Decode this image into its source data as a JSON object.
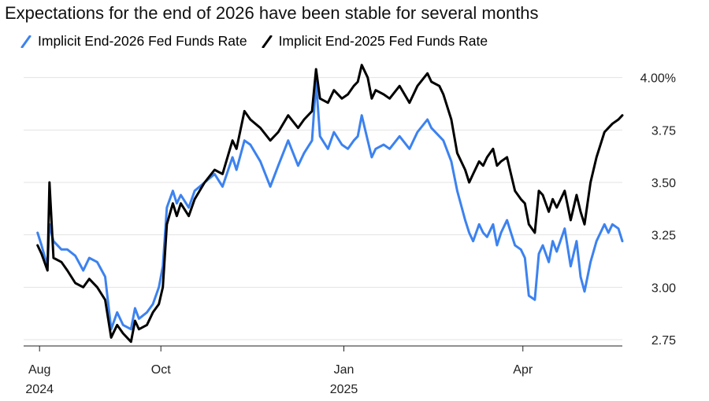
{
  "title": "Expectations for the end of 2026 have been stable for several months",
  "legend": {
    "items": [
      {
        "label": "Implicit End-2026 Fed Funds Rate",
        "color": "#3c82f0"
      },
      {
        "label": "Implicit End-2025 Fed Funds Rate",
        "color": "#000000"
      }
    ]
  },
  "chart_data": {
    "type": "line",
    "title": "Expectations for the end of 2026 have been stable for several months",
    "xlabel": "",
    "ylabel": "",
    "y_unit": "%",
    "ylim": [
      2.72,
      4.04
    ],
    "y_ticks": [
      {
        "value": 4.0,
        "label": "4.00%"
      },
      {
        "value": 3.75,
        "label": "3.75"
      },
      {
        "value": 3.5,
        "label": "3.50"
      },
      {
        "value": 3.25,
        "label": "3.25"
      },
      {
        "value": 3.0,
        "label": "3.00"
      },
      {
        "value": 2.75,
        "label": "2.75"
      }
    ],
    "x_range": [
      "2024-07-24",
      "2025-05-21"
    ],
    "x_ticks": [
      {
        "date": "2024-08-01",
        "label": "Aug",
        "sublabel": "2024"
      },
      {
        "date": "2024-10-01",
        "label": "Oct",
        "sublabel": ""
      },
      {
        "date": "2025-01-01",
        "label": "Jan",
        "sublabel": "2025"
      },
      {
        "date": "2025-04-01",
        "label": "Apr",
        "sublabel": ""
      }
    ],
    "grid": "horizontal",
    "legend_position": "top-left",
    "series": [
      {
        "name": "Implicit End-2026 Fed Funds Rate",
        "color": "#3c82f0",
        "points": [
          [
            "2024-07-31",
            3.26
          ],
          [
            "2024-08-02",
            3.2
          ],
          [
            "2024-08-05",
            3.1
          ],
          [
            "2024-08-06",
            3.3
          ],
          [
            "2024-08-08",
            3.22
          ],
          [
            "2024-08-12",
            3.18
          ],
          [
            "2024-08-15",
            3.18
          ],
          [
            "2024-08-19",
            3.15
          ],
          [
            "2024-08-23",
            3.08
          ],
          [
            "2024-08-26",
            3.14
          ],
          [
            "2024-08-30",
            3.12
          ],
          [
            "2024-09-03",
            3.05
          ],
          [
            "2024-09-06",
            2.8
          ],
          [
            "2024-09-09",
            2.88
          ],
          [
            "2024-09-12",
            2.82
          ],
          [
            "2024-09-16",
            2.8
          ],
          [
            "2024-09-18",
            2.9
          ],
          [
            "2024-09-20",
            2.85
          ],
          [
            "2024-09-24",
            2.88
          ],
          [
            "2024-09-27",
            2.92
          ],
          [
            "2024-09-30",
            3.0
          ],
          [
            "2024-10-02",
            3.1
          ],
          [
            "2024-10-04",
            3.38
          ],
          [
            "2024-10-07",
            3.46
          ],
          [
            "2024-10-09",
            3.4
          ],
          [
            "2024-10-11",
            3.44
          ],
          [
            "2024-10-15",
            3.38
          ],
          [
            "2024-10-18",
            3.46
          ],
          [
            "2024-10-23",
            3.5
          ],
          [
            "2024-10-28",
            3.54
          ],
          [
            "2024-11-01",
            3.48
          ],
          [
            "2024-11-06",
            3.62
          ],
          [
            "2024-11-08",
            3.56
          ],
          [
            "2024-11-12",
            3.7
          ],
          [
            "2024-11-15",
            3.68
          ],
          [
            "2024-11-20",
            3.6
          ],
          [
            "2024-11-25",
            3.48
          ],
          [
            "2024-11-29",
            3.58
          ],
          [
            "2024-12-04",
            3.7
          ],
          [
            "2024-12-09",
            3.58
          ],
          [
            "2024-12-12",
            3.64
          ],
          [
            "2024-12-16",
            3.7
          ],
          [
            "2024-12-18",
            3.98
          ],
          [
            "2024-12-20",
            3.72
          ],
          [
            "2024-12-24",
            3.66
          ],
          [
            "2024-12-27",
            3.74
          ],
          [
            "2024-12-31",
            3.68
          ],
          [
            "2025-01-03",
            3.66
          ],
          [
            "2025-01-06",
            3.7
          ],
          [
            "2025-01-08",
            3.72
          ],
          [
            "2025-01-10",
            3.82
          ],
          [
            "2025-01-13",
            3.7
          ],
          [
            "2025-01-15",
            3.62
          ],
          [
            "2025-01-17",
            3.66
          ],
          [
            "2025-01-21",
            3.68
          ],
          [
            "2025-01-24",
            3.66
          ],
          [
            "2025-01-29",
            3.72
          ],
          [
            "2025-02-03",
            3.66
          ],
          [
            "2025-02-07",
            3.74
          ],
          [
            "2025-02-12",
            3.8
          ],
          [
            "2025-02-14",
            3.76
          ],
          [
            "2025-02-18",
            3.72
          ],
          [
            "2025-02-20",
            3.7
          ],
          [
            "2025-02-24",
            3.6
          ],
          [
            "2025-02-27",
            3.46
          ],
          [
            "2025-03-03",
            3.32
          ],
          [
            "2025-03-05",
            3.26
          ],
          [
            "2025-03-07",
            3.22
          ],
          [
            "2025-03-10",
            3.3
          ],
          [
            "2025-03-12",
            3.26
          ],
          [
            "2025-03-14",
            3.24
          ],
          [
            "2025-03-17",
            3.3
          ],
          [
            "2025-03-19",
            3.2
          ],
          [
            "2025-03-21",
            3.26
          ],
          [
            "2025-03-24",
            3.32
          ],
          [
            "2025-03-26",
            3.26
          ],
          [
            "2025-03-28",
            3.2
          ],
          [
            "2025-03-31",
            3.18
          ],
          [
            "2025-04-02",
            3.14
          ],
          [
            "2025-04-04",
            2.96
          ],
          [
            "2025-04-07",
            2.94
          ],
          [
            "2025-04-09",
            3.16
          ],
          [
            "2025-04-11",
            3.2
          ],
          [
            "2025-04-14",
            3.12
          ],
          [
            "2025-04-16",
            3.22
          ],
          [
            "2025-04-18",
            3.17
          ],
          [
            "2025-04-22",
            3.28
          ],
          [
            "2025-04-25",
            3.1
          ],
          [
            "2025-04-28",
            3.22
          ],
          [
            "2025-04-30",
            3.05
          ],
          [
            "2025-05-02",
            2.98
          ],
          [
            "2025-05-05",
            3.12
          ],
          [
            "2025-05-08",
            3.22
          ],
          [
            "2025-05-12",
            3.3
          ],
          [
            "2025-05-14",
            3.26
          ],
          [
            "2025-05-16",
            3.3
          ],
          [
            "2025-05-19",
            3.28
          ],
          [
            "2025-05-21",
            3.22
          ]
        ]
      },
      {
        "name": "Implicit End-2025 Fed Funds Rate",
        "color": "#000000",
        "points": [
          [
            "2024-07-31",
            3.2
          ],
          [
            "2024-08-02",
            3.16
          ],
          [
            "2024-08-05",
            3.08
          ],
          [
            "2024-08-06",
            3.5
          ],
          [
            "2024-08-08",
            3.14
          ],
          [
            "2024-08-12",
            3.12
          ],
          [
            "2024-08-15",
            3.08
          ],
          [
            "2024-08-19",
            3.02
          ],
          [
            "2024-08-23",
            3.0
          ],
          [
            "2024-08-26",
            3.04
          ],
          [
            "2024-08-30",
            3.0
          ],
          [
            "2024-09-03",
            2.94
          ],
          [
            "2024-09-06",
            2.76
          ],
          [
            "2024-09-09",
            2.82
          ],
          [
            "2024-09-12",
            2.78
          ],
          [
            "2024-09-16",
            2.74
          ],
          [
            "2024-09-18",
            2.84
          ],
          [
            "2024-09-20",
            2.8
          ],
          [
            "2024-09-24",
            2.82
          ],
          [
            "2024-09-27",
            2.88
          ],
          [
            "2024-09-30",
            2.92
          ],
          [
            "2024-10-02",
            3.0
          ],
          [
            "2024-10-04",
            3.3
          ],
          [
            "2024-10-07",
            3.4
          ],
          [
            "2024-10-09",
            3.34
          ],
          [
            "2024-10-11",
            3.4
          ],
          [
            "2024-10-15",
            3.34
          ],
          [
            "2024-10-18",
            3.42
          ],
          [
            "2024-10-23",
            3.5
          ],
          [
            "2024-10-28",
            3.56
          ],
          [
            "2024-11-01",
            3.54
          ],
          [
            "2024-11-06",
            3.7
          ],
          [
            "2024-11-08",
            3.66
          ],
          [
            "2024-11-12",
            3.84
          ],
          [
            "2024-11-15",
            3.8
          ],
          [
            "2024-11-20",
            3.76
          ],
          [
            "2024-11-25",
            3.7
          ],
          [
            "2024-11-29",
            3.74
          ],
          [
            "2024-12-04",
            3.82
          ],
          [
            "2024-12-09",
            3.76
          ],
          [
            "2024-12-12",
            3.8
          ],
          [
            "2024-12-16",
            3.84
          ],
          [
            "2024-12-18",
            4.04
          ],
          [
            "2024-12-20",
            3.9
          ],
          [
            "2024-12-24",
            3.88
          ],
          [
            "2024-12-27",
            3.94
          ],
          [
            "2024-12-31",
            3.9
          ],
          [
            "2025-01-03",
            3.92
          ],
          [
            "2025-01-06",
            3.96
          ],
          [
            "2025-01-08",
            3.98
          ],
          [
            "2025-01-10",
            4.06
          ],
          [
            "2025-01-13",
            4.0
          ],
          [
            "2025-01-15",
            3.9
          ],
          [
            "2025-01-17",
            3.94
          ],
          [
            "2025-01-21",
            3.92
          ],
          [
            "2025-01-24",
            3.9
          ],
          [
            "2025-01-29",
            3.96
          ],
          [
            "2025-02-03",
            3.88
          ],
          [
            "2025-02-07",
            3.96
          ],
          [
            "2025-02-12",
            4.02
          ],
          [
            "2025-02-14",
            3.98
          ],
          [
            "2025-02-18",
            3.96
          ],
          [
            "2025-02-20",
            3.92
          ],
          [
            "2025-02-24",
            3.8
          ],
          [
            "2025-02-27",
            3.64
          ],
          [
            "2025-03-03",
            3.56
          ],
          [
            "2025-03-05",
            3.5
          ],
          [
            "2025-03-07",
            3.54
          ],
          [
            "2025-03-10",
            3.6
          ],
          [
            "2025-03-12",
            3.58
          ],
          [
            "2025-03-14",
            3.62
          ],
          [
            "2025-03-17",
            3.66
          ],
          [
            "2025-03-19",
            3.58
          ],
          [
            "2025-03-21",
            3.6
          ],
          [
            "2025-03-24",
            3.62
          ],
          [
            "2025-03-26",
            3.54
          ],
          [
            "2025-03-28",
            3.46
          ],
          [
            "2025-03-31",
            3.42
          ],
          [
            "2025-04-02",
            3.4
          ],
          [
            "2025-04-04",
            3.3
          ],
          [
            "2025-04-07",
            3.26
          ],
          [
            "2025-04-09",
            3.46
          ],
          [
            "2025-04-11",
            3.44
          ],
          [
            "2025-04-14",
            3.36
          ],
          [
            "2025-04-16",
            3.42
          ],
          [
            "2025-04-18",
            3.38
          ],
          [
            "2025-04-22",
            3.46
          ],
          [
            "2025-04-25",
            3.32
          ],
          [
            "2025-04-28",
            3.44
          ],
          [
            "2025-04-30",
            3.36
          ],
          [
            "2025-05-02",
            3.3
          ],
          [
            "2025-05-05",
            3.5
          ],
          [
            "2025-05-08",
            3.62
          ],
          [
            "2025-05-12",
            3.74
          ],
          [
            "2025-05-14",
            3.76
          ],
          [
            "2025-05-16",
            3.78
          ],
          [
            "2025-05-19",
            3.8
          ],
          [
            "2025-05-21",
            3.82
          ]
        ]
      }
    ]
  }
}
